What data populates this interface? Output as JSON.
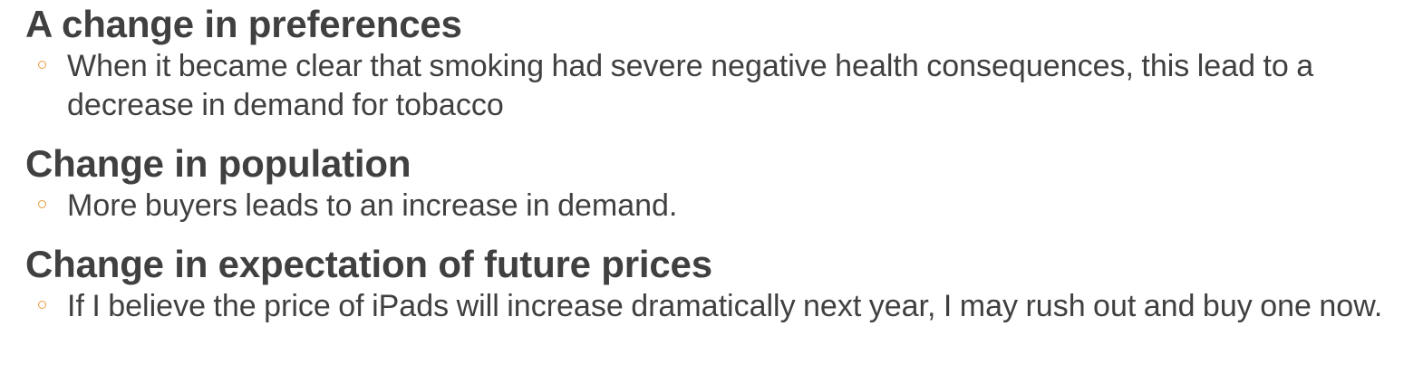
{
  "sections": [
    {
      "heading": "A change in preferences",
      "bullet": "When it became clear that smoking had severe negative health consequences, this lead to a decrease in demand for tobacco"
    },
    {
      "heading": "Change in population",
      "bullet": "More buyers leads to an increase in demand."
    },
    {
      "heading": "Change in expectation of future prices",
      "bullet": "If I believe the price of iPads will increase dramatically next year, I may rush out and buy one now."
    }
  ],
  "colors": {
    "text": "#404040",
    "bullet": "#e89b3c"
  }
}
